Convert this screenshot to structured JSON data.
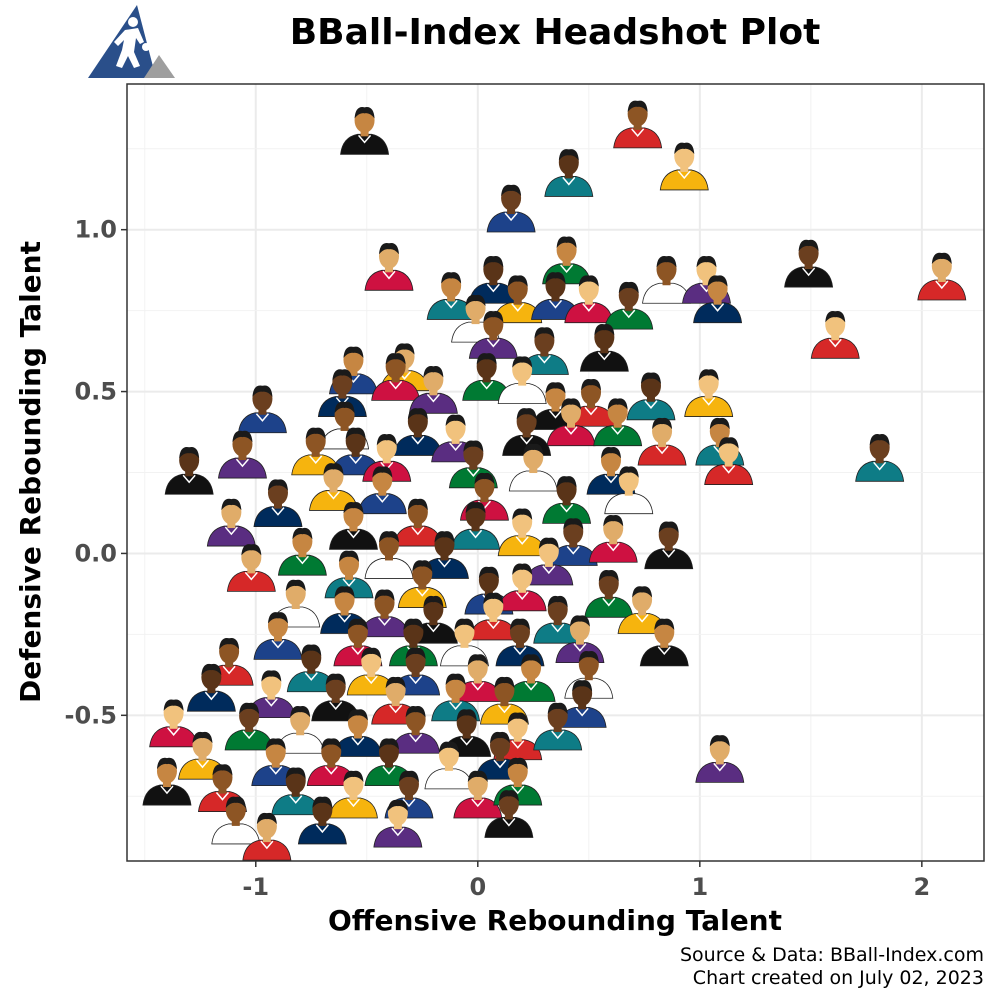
{
  "title": "BBall-Index Headshot Plot",
  "caption": {
    "line1": "Source & Data: BBall-Index.com",
    "line2": "Chart created on July 02, 2023"
  },
  "colors": {
    "logo_blue": "#2a4f8a",
    "logo_gray": "#9e9e9e",
    "panel_border": "#333333",
    "grid": "#ebebeb",
    "tick_text": "#4d4d4d",
    "skin": [
      "#8d5524",
      "#c68642",
      "#e0ac69",
      "#6b3f1f",
      "#f1c27d",
      "#5a3418"
    ],
    "jersey": [
      "#d62828",
      "#1d428a",
      "#ffffff",
      "#111111",
      "#f6b40e",
      "#007a33",
      "#5a2d81",
      "#0e7c86",
      "#ce1141",
      "#002b5c"
    ]
  },
  "chart_data": {
    "type": "scatter",
    "title": "BBall-Index Headshot Plot",
    "xlabel": "Offensive Rebounding Talent",
    "ylabel": "Defensive Rebounding Talent",
    "xlim": [
      -1.58,
      2.28
    ],
    "ylim": [
      -0.95,
      1.45
    ],
    "xticks": [
      -1,
      0,
      1,
      2
    ],
    "yticks": [
      -0.5,
      0.0,
      0.5,
      1.0
    ],
    "xtick_labels": [
      "-1",
      "0",
      "1",
      "2"
    ],
    "ytick_labels": [
      "-0.5",
      "0.0",
      "0.5",
      "1.0"
    ],
    "grid": true,
    "marker": "player-headshot",
    "points": [
      {
        "x": -0.51,
        "y": 1.31
      },
      {
        "x": 0.72,
        "y": 1.33
      },
      {
        "x": 0.41,
        "y": 1.18
      },
      {
        "x": 0.93,
        "y": 1.2
      },
      {
        "x": 0.15,
        "y": 1.07
      },
      {
        "x": -0.4,
        "y": 0.89
      },
      {
        "x": 0.4,
        "y": 0.91
      },
      {
        "x": 0.85,
        "y": 0.85
      },
      {
        "x": 0.07,
        "y": 0.85
      },
      {
        "x": 1.03,
        "y": 0.85
      },
      {
        "x": 1.49,
        "y": 0.9
      },
      {
        "x": 2.09,
        "y": 0.86
      },
      {
        "x": -0.12,
        "y": 0.8
      },
      {
        "x": 0.18,
        "y": 0.79
      },
      {
        "x": 0.35,
        "y": 0.8
      },
      {
        "x": 0.5,
        "y": 0.79
      },
      {
        "x": 0.68,
        "y": 0.77
      },
      {
        "x": -0.01,
        "y": 0.73
      },
      {
        "x": 1.08,
        "y": 0.79
      },
      {
        "x": 0.07,
        "y": 0.68
      },
      {
        "x": 0.57,
        "y": 0.64
      },
      {
        "x": 1.61,
        "y": 0.68
      },
      {
        "x": 0.3,
        "y": 0.63
      },
      {
        "x": -0.33,
        "y": 0.58
      },
      {
        "x": -0.56,
        "y": 0.57
      },
      {
        "x": -0.37,
        "y": 0.55
      },
      {
        "x": 0.04,
        "y": 0.55
      },
      {
        "x": 0.2,
        "y": 0.54
      },
      {
        "x": -0.61,
        "y": 0.5
      },
      {
        "x": -0.2,
        "y": 0.51
      },
      {
        "x": 0.35,
        "y": 0.46
      },
      {
        "x": 0.51,
        "y": 0.47
      },
      {
        "x": 0.78,
        "y": 0.49
      },
      {
        "x": 1.04,
        "y": 0.5
      },
      {
        "x": -0.97,
        "y": 0.45
      },
      {
        "x": 0.42,
        "y": 0.41
      },
      {
        "x": 0.63,
        "y": 0.41
      },
      {
        "x": -0.6,
        "y": 0.4
      },
      {
        "x": -0.27,
        "y": 0.38
      },
      {
        "x": -0.1,
        "y": 0.36
      },
      {
        "x": 0.22,
        "y": 0.38
      },
      {
        "x": 0.83,
        "y": 0.35
      },
      {
        "x": 1.09,
        "y": 0.35
      },
      {
        "x": -0.73,
        "y": 0.32
      },
      {
        "x": -0.55,
        "y": 0.32
      },
      {
        "x": -0.41,
        "y": 0.3
      },
      {
        "x": -0.02,
        "y": 0.28
      },
      {
        "x": 0.25,
        "y": 0.27
      },
      {
        "x": 0.6,
        "y": 0.26
      },
      {
        "x": -1.06,
        "y": 0.31
      },
      {
        "x": -1.3,
        "y": 0.26
      },
      {
        "x": 1.13,
        "y": 0.29
      },
      {
        "x": 1.81,
        "y": 0.3
      },
      {
        "x": -0.65,
        "y": 0.21
      },
      {
        "x": -0.43,
        "y": 0.2
      },
      {
        "x": 0.03,
        "y": 0.18
      },
      {
        "x": 0.4,
        "y": 0.17
      },
      {
        "x": 0.68,
        "y": 0.2
      },
      {
        "x": -0.9,
        "y": 0.16
      },
      {
        "x": -1.11,
        "y": 0.1
      },
      {
        "x": -0.56,
        "y": 0.09
      },
      {
        "x": -0.27,
        "y": 0.1
      },
      {
        "x": -0.01,
        "y": 0.09
      },
      {
        "x": 0.2,
        "y": 0.07
      },
      {
        "x": 0.43,
        "y": 0.04
      },
      {
        "x": 0.61,
        "y": 0.05
      },
      {
        "x": -0.79,
        "y": 0.01
      },
      {
        "x": -0.4,
        "y": 0.0
      },
      {
        "x": -0.15,
        "y": 0.0
      },
      {
        "x": 0.32,
        "y": -0.02
      },
      {
        "x": 0.86,
        "y": 0.03
      },
      {
        "x": -1.02,
        "y": -0.04
      },
      {
        "x": -0.58,
        "y": -0.06
      },
      {
        "x": -0.25,
        "y": -0.09
      },
      {
        "x": 0.05,
        "y": -0.11
      },
      {
        "x": 0.2,
        "y": -0.1
      },
      {
        "x": 0.59,
        "y": -0.12
      },
      {
        "x": -0.82,
        "y": -0.15
      },
      {
        "x": -0.6,
        "y": -0.17
      },
      {
        "x": -0.42,
        "y": -0.18
      },
      {
        "x": -0.2,
        "y": -0.2
      },
      {
        "x": 0.07,
        "y": -0.19
      },
      {
        "x": 0.36,
        "y": -0.2
      },
      {
        "x": 0.74,
        "y": -0.17
      },
      {
        "x": -0.9,
        "y": -0.25
      },
      {
        "x": -0.54,
        "y": -0.27
      },
      {
        "x": -0.29,
        "y": -0.27
      },
      {
        "x": -0.06,
        "y": -0.27
      },
      {
        "x": 0.19,
        "y": -0.27
      },
      {
        "x": 0.46,
        "y": -0.26
      },
      {
        "x": 0.84,
        "y": -0.27
      },
      {
        "x": -1.12,
        "y": -0.33
      },
      {
        "x": -0.75,
        "y": -0.35
      },
      {
        "x": -0.48,
        "y": -0.36
      },
      {
        "x": -0.28,
        "y": -0.36
      },
      {
        "x": 0.0,
        "y": -0.38
      },
      {
        "x": 0.24,
        "y": -0.38
      },
      {
        "x": 0.5,
        "y": -0.37
      },
      {
        "x": -1.2,
        "y": -0.41
      },
      {
        "x": -0.93,
        "y": -0.43
      },
      {
        "x": -0.64,
        "y": -0.44
      },
      {
        "x": -0.37,
        "y": -0.45
      },
      {
        "x": -0.1,
        "y": -0.44
      },
      {
        "x": 0.12,
        "y": -0.45
      },
      {
        "x": 0.47,
        "y": -0.46
      },
      {
        "x": -1.37,
        "y": -0.52
      },
      {
        "x": -1.03,
        "y": -0.53
      },
      {
        "x": -0.8,
        "y": -0.54
      },
      {
        "x": -0.54,
        "y": -0.55
      },
      {
        "x": -0.28,
        "y": -0.54
      },
      {
        "x": -0.05,
        "y": -0.55
      },
      {
        "x": 0.18,
        "y": -0.56
      },
      {
        "x": 0.36,
        "y": -0.53
      },
      {
        "x": -1.24,
        "y": -0.62
      },
      {
        "x": -0.91,
        "y": -0.64
      },
      {
        "x": -0.66,
        "y": -0.64
      },
      {
        "x": -0.4,
        "y": -0.64
      },
      {
        "x": -0.13,
        "y": -0.65
      },
      {
        "x": 0.1,
        "y": -0.62
      },
      {
        "x": 1.09,
        "y": -0.63
      },
      {
        "x": -1.4,
        "y": -0.7
      },
      {
        "x": -1.15,
        "y": -0.72
      },
      {
        "x": -0.82,
        "y": -0.73
      },
      {
        "x": -0.56,
        "y": -0.74
      },
      {
        "x": -0.31,
        "y": -0.74
      },
      {
        "x": 0.0,
        "y": -0.74
      },
      {
        "x": 0.18,
        "y": -0.7
      },
      {
        "x": -1.09,
        "y": -0.82
      },
      {
        "x": -0.7,
        "y": -0.82
      },
      {
        "x": -0.36,
        "y": -0.83
      },
      {
        "x": 0.14,
        "y": -0.8
      },
      {
        "x": -0.95,
        "y": -0.87
      }
    ]
  }
}
